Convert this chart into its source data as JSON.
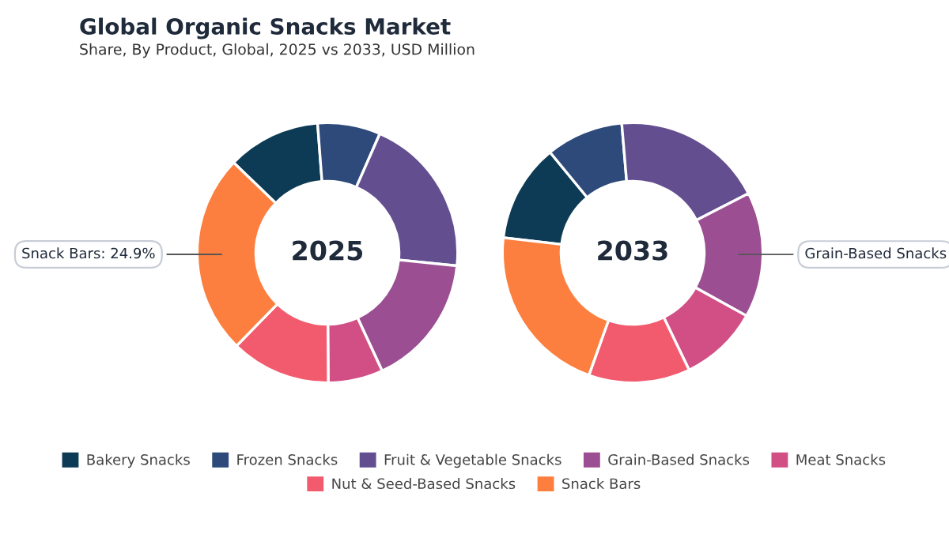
{
  "chart_data": [
    {
      "type": "donut",
      "title": "Global Organic Snacks Market",
      "subtitle": "Share, By Product, Global, 2025 vs 2033, USD Million",
      "annotations": [
        "2025",
        {
          "text": "Snack Bars: 24.9%",
          "x": "Snack Bars"
        }
      ],
      "legend": "bottom",
      "categories": [
        "Bakery Snacks",
        "Frozen Snacks",
        "Fruit & Vegetable Snacks",
        "Grain-Based Snacks",
        "Meat Snacks",
        "Nut & Seed-Based Snacks",
        "Snack Bars"
      ],
      "values": [
        11.6,
        7.8,
        20.0,
        16.5,
        6.8,
        12.4,
        24.9
      ],
      "colors": [
        "#0d3b55",
        "#2d4a7a",
        "#634f8f",
        "#9b4f92",
        "#d24f86",
        "#f25b6e",
        "#fd7f3f"
      ]
    },
    {
      "type": "donut",
      "annotations": [
        "2033",
        {
          "text": "Grain-Based Snacks",
          "x": "Grain-Based Snacks"
        }
      ],
      "categories": [
        null,
        null,
        null,
        null,
        null,
        null,
        null
      ],
      "values": [
        12.2,
        9.6,
        18.8,
        15.6,
        9.8,
        12.6,
        21.4
      ],
      "colors": [
        "#0d3b55",
        "#2d4a7a",
        "#634f8f",
        "#9b4f92",
        "#d24f86",
        "#f25b6e",
        "#fd7f3f"
      ]
    }
  ]
}
